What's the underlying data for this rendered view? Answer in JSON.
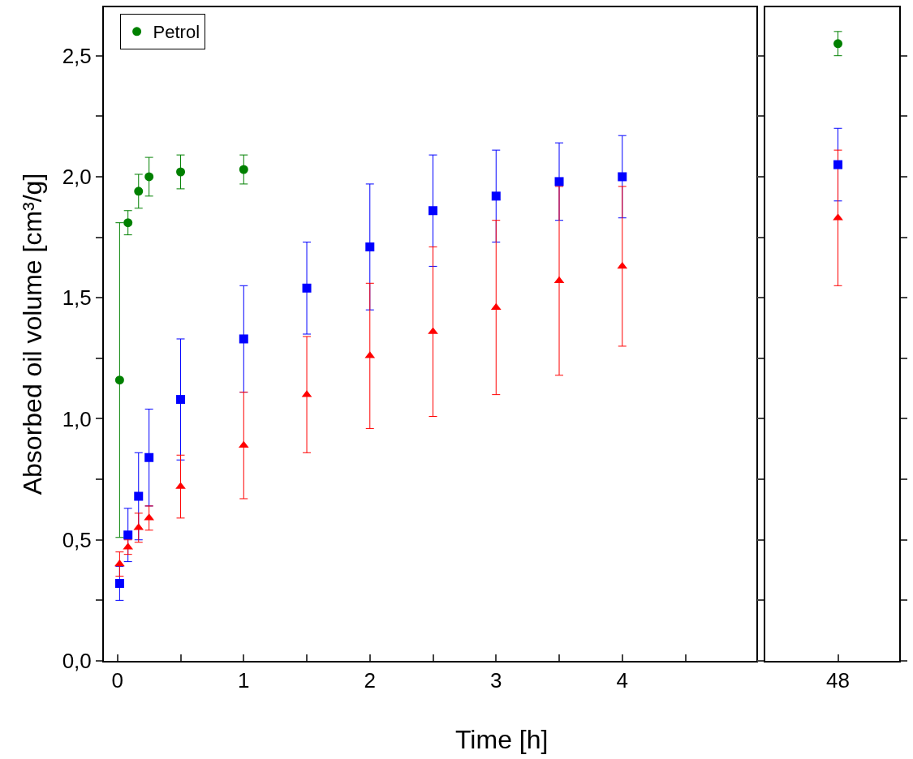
{
  "chart_data": [
    {
      "type": "scatter",
      "xlabel": "Time [h]",
      "ylabel": "Absorbed oil volume [cm³/g]",
      "legend": "top left",
      "xlim": [
        -0.108,
        5.06
      ],
      "xticks": [
        0,
        {
          "value": 0.5,
          "label": null
        },
        1,
        {
          "value": 1.5,
          "label": null
        },
        2,
        {
          "value": 2.5,
          "label": null
        },
        3,
        {
          "value": 3.5,
          "label": null
        },
        4,
        {
          "value": 4.5,
          "label": null
        }
      ],
      "ylim": [
        0,
        2.7
      ],
      "yticks": [
        {
          "value": 0,
          "label": "0,0"
        },
        {
          "value": 0.25,
          "label": null
        },
        {
          "value": 0.5,
          "label": "0,5"
        },
        {
          "value": 0.75,
          "label": null
        },
        {
          "value": 1.0,
          "label": "1,0"
        },
        {
          "value": 1.25,
          "label": null
        },
        {
          "value": 1.5,
          "label": "1,5"
        },
        {
          "value": 1.75,
          "label": null
        },
        {
          "value": 2.0,
          "label": "2,0"
        },
        {
          "value": 2.25,
          "label": null
        },
        {
          "value": 2.5,
          "label": "2,5"
        }
      ],
      "x": [
        0.0167,
        0.083,
        0.167,
        0.25,
        0.5,
        1,
        1.5,
        2,
        2.5,
        3,
        3.5,
        4
      ],
      "series": [
        {
          "color": "#0000ff",
          "marker": "square",
          "values": [
            0.32,
            0.52,
            0.68,
            0.84,
            1.08,
            1.33,
            1.54,
            1.71,
            1.86,
            1.92,
            1.98,
            2.0
          ],
          "errors": [
            0.07,
            0.11,
            0.18,
            0.2,
            0.25,
            0.22,
            0.19,
            0.26,
            0.23,
            0.19,
            0.16,
            0.17
          ]
        },
        {
          "color": "#ff0000",
          "marker": "triangle",
          "values": [
            0.4,
            0.47,
            0.55,
            0.59,
            0.72,
            0.89,
            1.1,
            1.26,
            1.36,
            1.46,
            1.57,
            1.63
          ],
          "errors": [
            0.05,
            0.03,
            0.06,
            0.05,
            0.13,
            0.22,
            0.24,
            0.3,
            0.35,
            0.36,
            0.39,
            0.33
          ]
        },
        {
          "name": "Petrol",
          "color": "#008000",
          "marker": "circle",
          "x": [
            0.0167,
            0.083,
            0.167,
            0.25,
            0.5,
            1
          ],
          "values": [
            1.16,
            1.81,
            1.94,
            2.0,
            2.02,
            2.03
          ],
          "errors": [
            0.65,
            0.05,
            0.07,
            0.08,
            0.07,
            0.06
          ]
        }
      ]
    },
    {
      "type": "scatter",
      "tick_labels": "x",
      "categories": [
        "48"
      ],
      "ylim": [
        0,
        2.7
      ],
      "yticks": [
        {
          "value": 0,
          "label": null
        },
        {
          "value": 0.25,
          "label": null
        },
        {
          "value": 0.5,
          "label": null
        },
        {
          "value": 0.75,
          "label": null
        },
        {
          "value": 1.0,
          "label": null
        },
        {
          "value": 1.25,
          "label": null
        },
        {
          "value": 1.5,
          "label": null
        },
        {
          "value": 1.75,
          "label": null
        },
        {
          "value": 2.0,
          "label": null
        },
        {
          "value": 2.25,
          "label": null
        },
        {
          "value": 2.5,
          "label": null
        }
      ],
      "series": [
        {
          "color": "#0000ff",
          "marker": "square",
          "values": [
            2.05
          ],
          "errors": [
            0.15
          ]
        },
        {
          "color": "#ff0000",
          "marker": "triangle",
          "values": [
            1.83
          ],
          "errors": [
            0.28
          ]
        },
        {
          "color": "#008000",
          "marker": "circle",
          "values": [
            2.55
          ],
          "errors": [
            0.05
          ]
        }
      ]
    }
  ]
}
